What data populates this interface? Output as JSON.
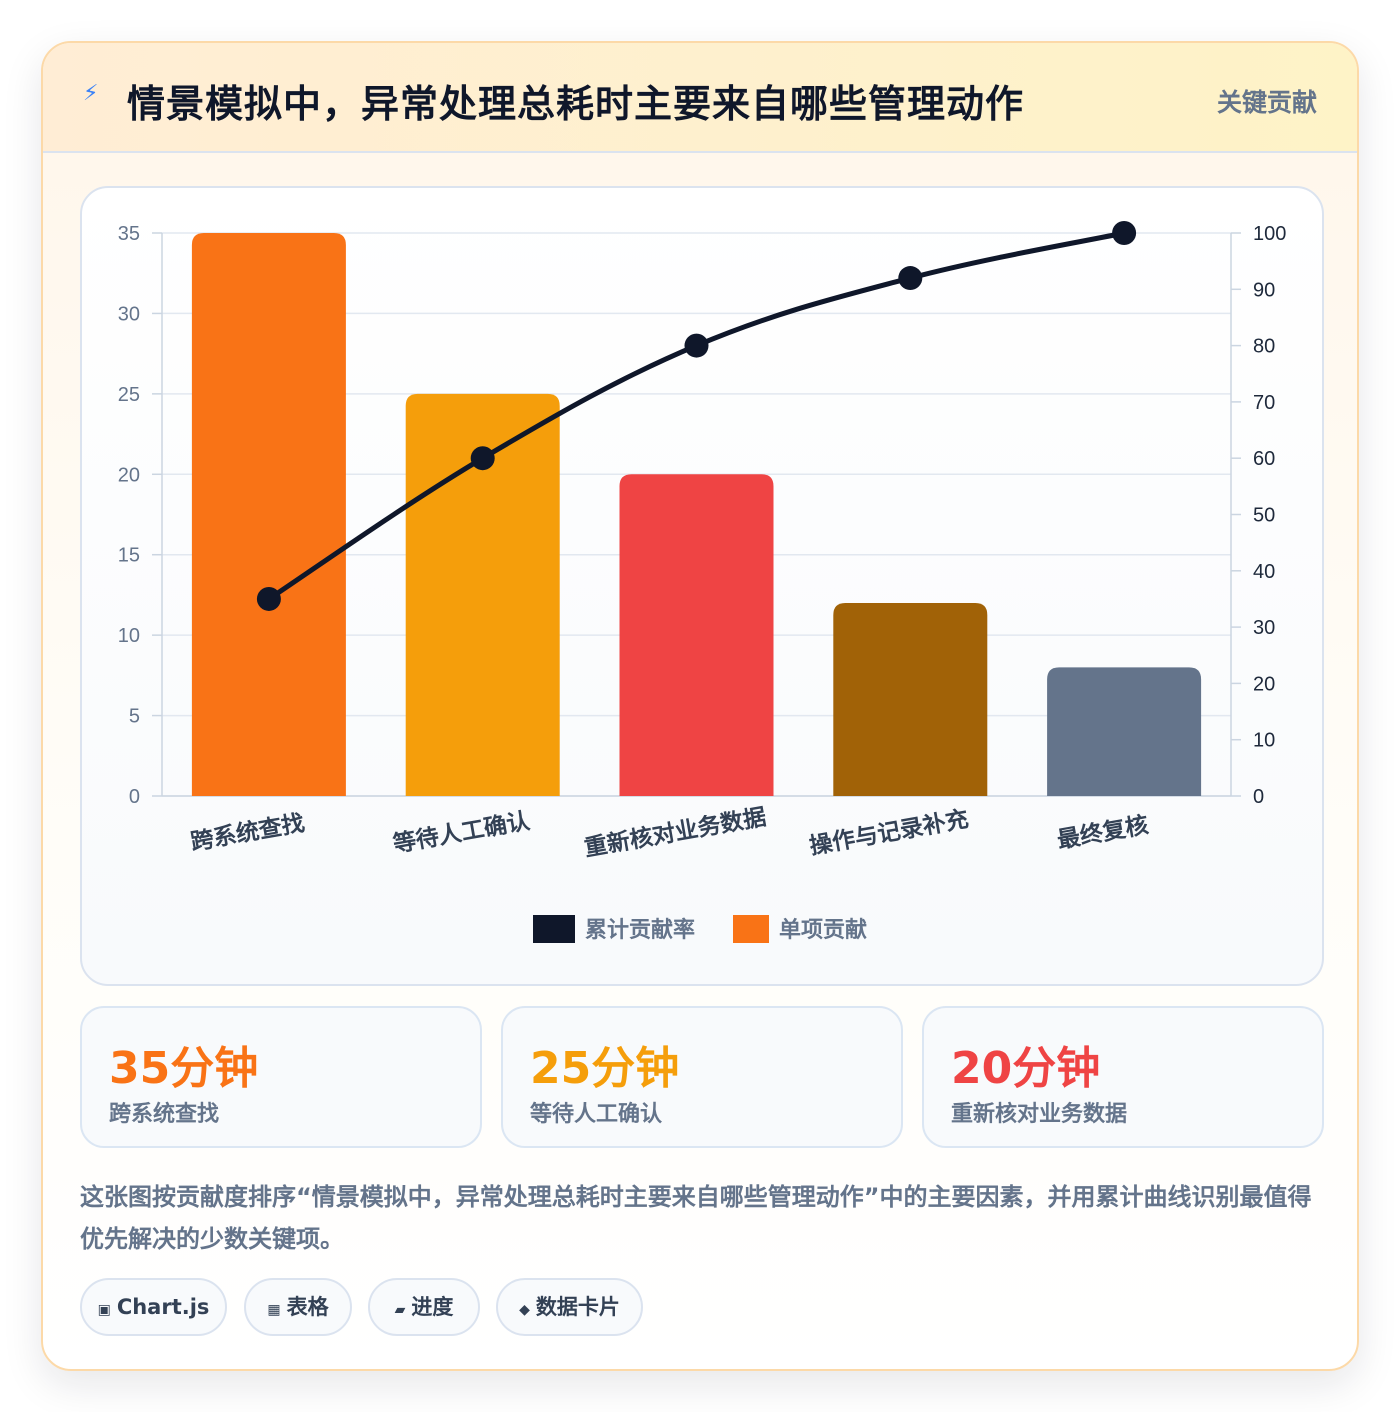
{
  "header": {
    "icon": "lightning-icon",
    "title": "情景模拟中，异常处理总耗时主要来自哪些管理动作",
    "badge": "关键贡献"
  },
  "chart_data": {
    "type": "bar",
    "categories": [
      "跨系统查找",
      "等待人工确认",
      "重新核对业务数据",
      "操作与记录补充",
      "最终复核"
    ],
    "series": [
      {
        "name": "单项贡献",
        "type": "bar",
        "axis": "left",
        "values": [
          35,
          25,
          20,
          12,
          8
        ]
      },
      {
        "name": "累计贡献率",
        "type": "line",
        "axis": "right",
        "values": [
          35,
          60,
          80,
          92,
          100
        ]
      }
    ],
    "bar_colors": [
      "#f97316",
      "#f59e0b",
      "#ef4444",
      "#a16207",
      "#64748b"
    ],
    "line_color": "#0f172a",
    "ylim": [
      0,
      35
    ],
    "yticks": [
      0,
      5,
      10,
      15,
      20,
      25,
      30,
      35
    ],
    "y2lim": [
      0,
      100
    ],
    "y2ticks": [
      0,
      10,
      20,
      30,
      40,
      50,
      60,
      70,
      80,
      90,
      100
    ],
    "legend": [
      {
        "label": "累计贡献率",
        "color": "#0f172a"
      },
      {
        "label": "单项贡献",
        "color": "#f97316"
      }
    ],
    "legend_position": "bottom",
    "grid": true
  },
  "stats": [
    {
      "value": "35分钟",
      "label": "跨系统查找",
      "color": "#f97316"
    },
    {
      "value": "25分钟",
      "label": "等待人工确认",
      "color": "#f59e0b"
    },
    {
      "value": "20分钟",
      "label": "重新核对业务数据",
      "color": "#ef4444"
    }
  ],
  "description": "这张图按贡献度排序“情景模拟中，异常处理总耗时主要来自哪些管理动作”中的主要因素，并用累计曲线识别最值得优先解决的少数关键项。",
  "chips": [
    {
      "icon": "▣",
      "label": "Chart.js"
    },
    {
      "icon": "▦",
      "label": "表格"
    },
    {
      "icon": "▰",
      "label": "进度"
    },
    {
      "icon": "◆",
      "label": "数据卡片"
    }
  ]
}
